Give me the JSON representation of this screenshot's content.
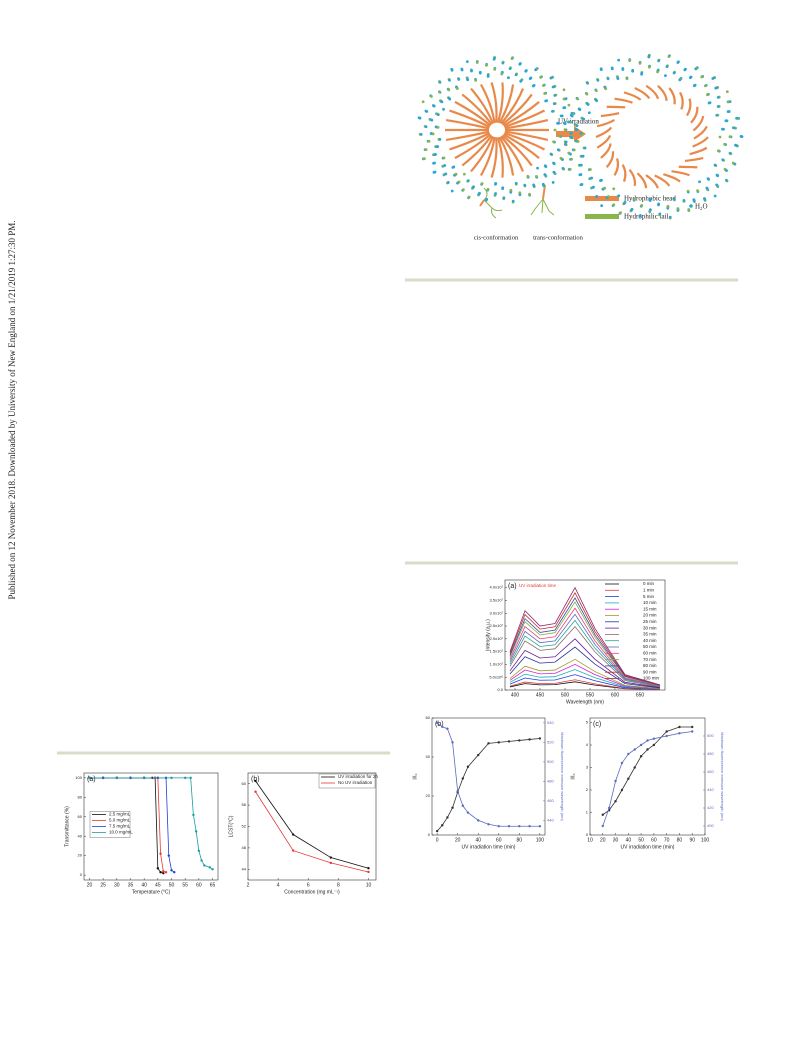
{
  "margin_note": "Published on 12 November 2018. Downloaded by University of New England on 1/21/2019 1:27:30 PM.",
  "scheme": {
    "arrow_label": "UV irradiation",
    "head_label": "Hydrophobic head",
    "tail_label": "Hydrophilic tail",
    "water_label": "H₂O",
    "cis_label": "cis-conformation",
    "trans_label": "trans-conformation"
  },
  "chart_data": [
    {
      "type": "line",
      "panel_label": "(a)",
      "inset_title": "UV irradiation time",
      "xlabel": "Wavelength (nm)",
      "ylabel": "Intensity (a.u.)",
      "xlim": [
        380,
        700
      ],
      "xticks": [
        400,
        450,
        500,
        550,
        600,
        650
      ],
      "ylim": [
        0,
        4.3
      ],
      "yticks": [
        {
          "value": 0,
          "label": "0.0"
        },
        {
          "value": 0.5,
          "label": "5.0x10⁶"
        },
        {
          "value": 1.0,
          "label": "1.0x10⁷"
        },
        {
          "value": 1.5,
          "label": "1.5x10⁷"
        },
        {
          "value": 2.0,
          "label": "2.0x10⁷"
        },
        {
          "value": 2.5,
          "label": "2.5x10⁷"
        },
        {
          "value": 3.0,
          "label": "3.0x10⁷"
        },
        {
          "value": 3.5,
          "label": "3.5x10⁷"
        },
        {
          "value": 4.0,
          "label": "4.0x10⁷"
        }
      ],
      "legend": "upper right",
      "markers": false,
      "x": [
        390,
        420,
        450,
        480,
        520,
        560,
        620,
        690
      ],
      "series": [
        {
          "name": "0 min",
          "color": "#111111",
          "values": [
            0.12,
            0.25,
            0.2,
            0.21,
            0.32,
            0.19,
            0.05,
            0.02
          ]
        },
        {
          "name": "1 min",
          "color": "#e53935",
          "values": [
            0.15,
            0.31,
            0.25,
            0.26,
            0.4,
            0.24,
            0.06,
            0.02
          ]
        },
        {
          "name": "5 min",
          "color": "#1e3fd8",
          "values": [
            0.23,
            0.47,
            0.38,
            0.39,
            0.6,
            0.36,
            0.09,
            0.03
          ]
        },
        {
          "name": "10 min",
          "color": "#1ab0b0",
          "values": [
            0.3,
            0.62,
            0.5,
            0.52,
            0.8,
            0.48,
            0.12,
            0.04
          ]
        },
        {
          "name": "15 min",
          "color": "#d81bd8",
          "values": [
            0.38,
            0.78,
            0.63,
            0.65,
            1.0,
            0.6,
            0.15,
            0.05
          ]
        },
        {
          "name": "20 min",
          "color": "#9e9d24",
          "values": [
            0.45,
            0.93,
            0.75,
            0.78,
            1.2,
            0.72,
            0.18,
            0.06
          ]
        },
        {
          "name": "25 min",
          "color": "#283593",
          "values": [
            0.63,
            1.3,
            1.05,
            1.09,
            1.68,
            1.01,
            0.25,
            0.08
          ]
        },
        {
          "name": "30 min",
          "color": "#6a1b9a",
          "values": [
            0.75,
            1.55,
            1.25,
            1.3,
            2.0,
            1.2,
            0.3,
            0.1
          ]
        },
        {
          "name": "35 min",
          "color": "#8d6e63",
          "values": [
            0.93,
            1.92,
            1.55,
            1.61,
            2.48,
            1.49,
            0.37,
            0.12
          ]
        },
        {
          "name": "40 min",
          "color": "#26a69a",
          "values": [
            1.02,
            2.11,
            1.7,
            1.77,
            2.72,
            1.63,
            0.41,
            0.14
          ]
        },
        {
          "name": "50 min",
          "color": "#5c6bc0",
          "values": [
            1.11,
            2.29,
            1.85,
            1.92,
            2.96,
            1.78,
            0.44,
            0.15
          ]
        },
        {
          "name": "60 min",
          "color": "#ec407a",
          "values": [
            1.2,
            2.48,
            2.0,
            2.08,
            3.2,
            1.92,
            0.48,
            0.16
          ]
        },
        {
          "name": "70 min",
          "color": "#7cb342",
          "values": [
            1.29,
            2.67,
            2.15,
            2.24,
            3.44,
            2.06,
            0.52,
            0.17
          ]
        },
        {
          "name": "80 min",
          "color": "#3949ab",
          "values": [
            1.35,
            2.79,
            2.25,
            2.34,
            3.6,
            2.16,
            0.54,
            0.18
          ]
        },
        {
          "name": "90 min",
          "color": "#c62828",
          "values": [
            1.43,
            2.95,
            2.38,
            2.47,
            3.8,
            2.28,
            0.57,
            0.19
          ]
        },
        {
          "name": "100 min",
          "color": "#8e2b6b",
          "values": [
            1.5,
            3.1,
            2.5,
            2.6,
            4.0,
            2.4,
            0.6,
            0.2
          ]
        }
      ]
    },
    {
      "type": "line",
      "panel_label": "(b)",
      "xlabel": "UV irradiation time (min)",
      "ylabel": "I/I₀",
      "y2label": "Maximum fluorescence emission wavelength (nm)",
      "xlim": [
        -5,
        105
      ],
      "xticks": [
        0,
        20,
        40,
        60,
        80,
        100
      ],
      "ylim": [
        0,
        60
      ],
      "yticks": [
        0,
        20,
        40,
        60
      ],
      "y2lim": [
        425,
        545
      ],
      "y2ticks": [
        440,
        460,
        480,
        500,
        520,
        540
      ],
      "markers": true,
      "x": [
        0,
        5,
        10,
        15,
        20,
        25,
        30,
        40,
        50,
        60,
        70,
        80,
        90,
        100
      ],
      "series": [
        {
          "color": "#333333",
          "values": [
            2,
            5,
            9,
            14,
            22,
            29,
            35,
            41,
            47,
            47.5,
            48,
            48.5,
            49,
            49.5
          ]
        },
        {
          "color": "#5c6bc0",
          "axis": "y2",
          "values": [
            540,
            536,
            534,
            520,
            470,
            455,
            448,
            440,
            436,
            434,
            434,
            434,
            434,
            434
          ]
        }
      ]
    },
    {
      "type": "line",
      "panel_label": "(c)",
      "xlabel": "UV irradiation time (min)",
      "ylabel": "I/I₀",
      "y2label": "Maximum fluorescence emission wavelength (nm)",
      "xlim": [
        10,
        100
      ],
      "xticks": [
        10,
        20,
        30,
        40,
        50,
        60,
        70,
        80,
        90,
        100
      ],
      "ylim": [
        0,
        5.2
      ],
      "yticks": [
        0,
        1,
        2,
        3,
        4,
        5
      ],
      "y2lim": [
        390,
        520
      ],
      "y2ticks": [
        400,
        420,
        440,
        460,
        480,
        500
      ],
      "markers": true,
      "x": [
        20,
        25,
        30,
        35,
        40,
        45,
        50,
        55,
        60,
        70,
        80,
        90
      ],
      "series": [
        {
          "color": "#333333",
          "values": [
            0.9,
            1.1,
            1.5,
            2.0,
            2.5,
            3.0,
            3.5,
            3.8,
            4.0,
            4.6,
            4.8,
            4.8
          ]
        },
        {
          "color": "#5c6bc0",
          "axis": "y2",
          "values": [
            400,
            420,
            450,
            470,
            480,
            485,
            490,
            495,
            497,
            500,
            503,
            505
          ]
        }
      ]
    },
    {
      "type": "line",
      "panel_label": "(a)",
      "xlabel": "Temperature (°C)",
      "ylabel": "Transmittance (%)",
      "xlim": [
        18,
        67
      ],
      "xticks": [
        20,
        25,
        30,
        35,
        40,
        45,
        50,
        55,
        60,
        65
      ],
      "ylim": [
        -5,
        105
      ],
      "yticks": [
        0,
        20,
        40,
        60,
        80,
        100
      ],
      "legend": "center left",
      "markers": true,
      "series": [
        {
          "name": "2.5  mg/mL",
          "color": "#111111",
          "x": [
            20,
            25,
            30,
            35,
            40,
            43,
            44,
            45,
            46,
            47
          ],
          "values": [
            100,
            100,
            100,
            100,
            100,
            100,
            100,
            7,
            3,
            2
          ]
        },
        {
          "name": "5.0  mg/mL",
          "color": "#e53935",
          "x": [
            20,
            25,
            30,
            35,
            40,
            44,
            45,
            46,
            47,
            48
          ],
          "values": [
            100,
            100,
            100,
            100,
            100,
            100,
            100,
            22,
            4,
            3
          ]
        },
        {
          "name": "7.5  mg/mL",
          "color": "#1e3fd8",
          "x": [
            20,
            25,
            30,
            35,
            40,
            45,
            48,
            49,
            50,
            51
          ],
          "values": [
            100,
            100,
            100,
            100,
            100,
            100,
            100,
            20,
            5,
            3
          ]
        },
        {
          "name": "10.0 mg/mL",
          "color": "#1a9e9e",
          "x": [
            20,
            30,
            40,
            50,
            55,
            57,
            58,
            59,
            60,
            61,
            62,
            64,
            65
          ],
          "values": [
            100,
            100,
            100,
            100,
            100,
            100,
            62,
            45,
            25,
            15,
            10,
            8,
            6
          ]
        }
      ]
    },
    {
      "type": "line",
      "panel_label": "(b)",
      "xlabel": "Concentration (mg mL⁻¹)",
      "ylabel": "LCST(°C)",
      "xlim": [
        2,
        10.5
      ],
      "xticks": [
        2,
        4,
        6,
        8,
        10
      ],
      "ylim": [
        42,
        62
      ],
      "yticks": [
        44,
        48,
        52,
        56,
        60
      ],
      "legend": "upper right",
      "markers": true,
      "series": [
        {
          "name": "UV irradiation for 2h",
          "color": "#111111",
          "x": [
            2.5,
            5,
            7.5,
            10
          ],
          "values": [
            60.5,
            50.5,
            46.2,
            44.2
          ]
        },
        {
          "name": "No UV irradiation",
          "color": "#e53935",
          "x": [
            2.5,
            5,
            7.5,
            10
          ],
          "values": [
            58.5,
            47.5,
            45.2,
            43.5
          ]
        }
      ]
    }
  ]
}
